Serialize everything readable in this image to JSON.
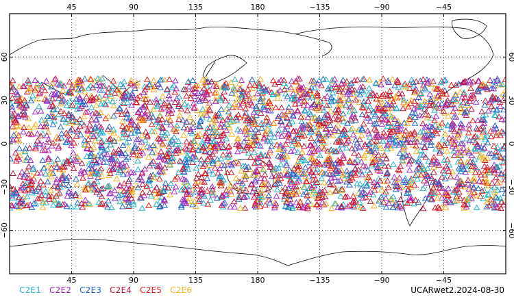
{
  "map": {
    "projection": "cylindrical-equidistant",
    "lon_range": [
      0,
      360
    ],
    "lat_range": [
      -90,
      90
    ],
    "frame_color": "#000000",
    "grid": {
      "style": "dotted",
      "lon_step": 45,
      "lat_step": 30
    },
    "lon_tick_labels": [
      "45",
      "90",
      "135",
      "180",
      "−135",
      "−90",
      "−45"
    ],
    "lon_tick_values": [
      45,
      90,
      135,
      180,
      225,
      270,
      315
    ],
    "lat_tick_labels": [
      "60",
      "30",
      "0",
      "−30",
      "−60"
    ],
    "lat_tick_values": [
      60,
      30,
      0,
      -30,
      -60
    ],
    "observation_band_lat": [
      -45,
      45
    ],
    "marker_shape": "open-triangle"
  },
  "legend": [
    {
      "label": "C2E1",
      "color": "#1fb5c9"
    },
    {
      "label": "C2E2",
      "color": "#a327c9"
    },
    {
      "label": "C2E3",
      "color": "#2163c8"
    },
    {
      "label": "C2E4",
      "color": "#c4143c"
    },
    {
      "label": "C2E5",
      "color": "#e41a1a"
    },
    {
      "label": "C2E6",
      "color": "#f3b21a"
    }
  ],
  "product_label": "UCARwet2.2024-08-30"
}
